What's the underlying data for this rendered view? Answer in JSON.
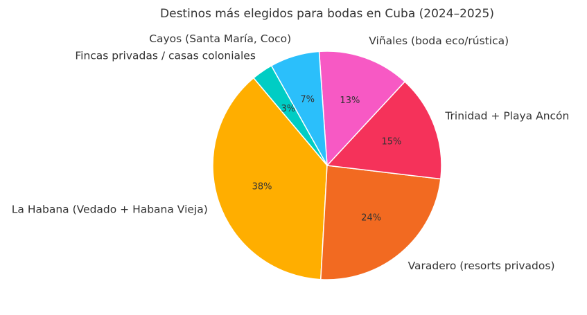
{
  "chart_data": {
    "type": "pie",
    "title": "Destinos más elegidos para bodas en Cuba (2024–2025)",
    "slices": [
      {
        "label": "La Habana (Vedado + Habana Vieja)",
        "value": 38,
        "pct_label": "38%",
        "color": "#FFAE00"
      },
      {
        "label": "Varadero (resorts privados)",
        "value": 24,
        "pct_label": "24%",
        "color": "#F26A21"
      },
      {
        "label": "Trinidad + Playa Ancón",
        "value": 15,
        "pct_label": "15%",
        "color": "#F5325A"
      },
      {
        "label": "Viñales (boda eco/rústica)",
        "value": 13,
        "pct_label": "13%",
        "color": "#F759C4"
      },
      {
        "label": "Cayos (Santa María, Coco)",
        "value": 7,
        "pct_label": "7%",
        "color": "#2BBFFB"
      },
      {
        "label": "Fincas privadas / casas coloniales",
        "value": 3,
        "pct_label": "3%",
        "color": "#00CDC4"
      }
    ],
    "start_angle_deg": 130,
    "direction": "counterclockwise",
    "legend": "none"
  }
}
